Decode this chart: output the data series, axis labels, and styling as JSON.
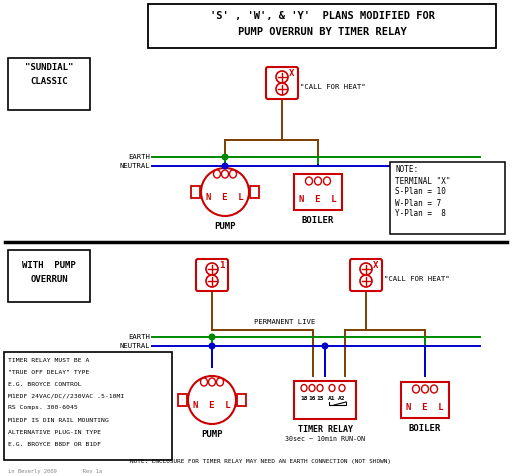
{
  "title_line1": "'S' , 'W', & 'Y'  PLANS MODIFIED FOR",
  "title_line2": "PUMP OVERRUN BY TIMER RELAY",
  "bg_color": "#ffffff",
  "red": "#cc0000",
  "green": "#008800",
  "blue": "#0000cc",
  "brown": "#7B3F00",
  "black": "#000000",
  "gray": "#888888",
  "section1_label": "\"SUNDIAL\"\nCLASSIC",
  "section2_label": "WITH  PUMP\nOVERRUN",
  "note1_lines": [
    "NOTE:",
    "TERMINAL \"X\"",
    "S-Plan = 10",
    "W-Plan = 7",
    "Y-Plan =  8"
  ],
  "note2_lines": [
    "TIMER RELAY MUST BE A",
    "\"TRUE OFF DELAY\" TYPE",
    "E.G. BROYCE CONTROL",
    "M1EDF 24VAC/DC//230VAC .5-10MI",
    "RS Comps. 300-6045",
    "M1EDF IS DIN RAIL MOUNTING",
    "ALTERNATIVE PLUG-IN TYPE",
    "E.G. BROYCE B8DF OR B1DF"
  ],
  "note3": "NOTE: ENCLOSURE FOR TIMER RELAY MAY NEED AN EARTH CONNECTION (NOT SHOWN)",
  "copyright": "in Beverly 2009        Rev 1a"
}
